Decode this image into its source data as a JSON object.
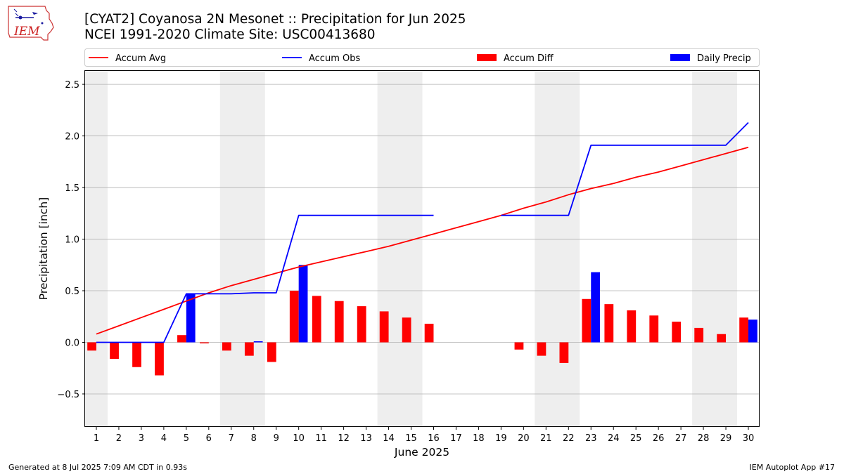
{
  "header": {
    "title_line1": "[CYAT2] Coyanosa 2N Mesonet :: Precipitation for Jun 2025",
    "title_line2": "NCEI 1991-2020 Climate Site: USC00413680",
    "logo_text": "IEM"
  },
  "footer": {
    "generated": "Generated at 8 Jul 2025 7:09 AM CDT in 0.93s",
    "app": "IEM Autoplot App #17"
  },
  "colors": {
    "accum_avg": "#ff0000",
    "accum_obs": "#0000ff",
    "accum_diff": "#ff0000",
    "daily_precip": "#0000ff",
    "weekend_shade": "#eeeeee",
    "grid": "#b0b0b0"
  },
  "chart_data": {
    "type": "bar",
    "xlabel": "June 2025",
    "ylabel": "Precipitation [inch]",
    "ylim": [
      -0.82,
      2.63
    ],
    "yticks": [
      -0.5,
      0.0,
      0.5,
      1.0,
      1.5,
      2.0,
      2.5
    ],
    "ytick_labels": [
      "−0.5",
      "0.0",
      "0.5",
      "1.0",
      "1.5",
      "2.0",
      "2.5"
    ],
    "xlim": [
      0.5,
      30.5
    ],
    "x": [
      1,
      2,
      3,
      4,
      5,
      6,
      7,
      8,
      9,
      10,
      11,
      12,
      13,
      14,
      15,
      16,
      17,
      18,
      19,
      20,
      21,
      22,
      23,
      24,
      25,
      26,
      27,
      28,
      29,
      30
    ],
    "xtick_labels": [
      "1",
      "2",
      "3",
      "4",
      "5",
      "6",
      "7",
      "8",
      "9",
      "10",
      "11",
      "12",
      "13",
      "14",
      "15",
      "16",
      "17",
      "18",
      "19",
      "20",
      "21",
      "22",
      "23",
      "24",
      "25",
      "26",
      "27",
      "28",
      "29",
      "30"
    ],
    "grid": "horizontal",
    "legend_position": "top",
    "shaded_day_spans": [
      [
        0.5,
        1.5
      ],
      [
        6.5,
        8.5
      ],
      [
        13.5,
        15.5
      ],
      [
        20.5,
        22.5
      ],
      [
        27.5,
        29.5
      ]
    ],
    "series": [
      {
        "name": "Accum Avg",
        "kind": "line",
        "values": [
          0.08,
          0.16,
          0.24,
          0.32,
          0.4,
          0.48,
          0.55,
          0.61,
          0.67,
          0.73,
          0.78,
          0.83,
          0.88,
          0.93,
          0.99,
          1.05,
          1.11,
          1.17,
          1.23,
          1.3,
          1.36,
          1.43,
          1.49,
          1.54,
          1.6,
          1.65,
          1.71,
          1.77,
          1.83,
          1.89
        ]
      },
      {
        "name": "Accum Obs",
        "kind": "line",
        "values": [
          0.0,
          0.0,
          0.0,
          0.0,
          0.47,
          0.47,
          0.47,
          0.48,
          0.48,
          1.23,
          1.23,
          1.23,
          1.23,
          1.23,
          1.23,
          1.23,
          null,
          null,
          1.23,
          1.23,
          1.23,
          1.23,
          1.91,
          1.91,
          1.91,
          1.91,
          1.91,
          1.91,
          1.91,
          2.13
        ]
      },
      {
        "name": "Accum Diff",
        "kind": "bar",
        "values": [
          -0.08,
          -0.16,
          -0.24,
          -0.32,
          0.07,
          -0.01,
          -0.08,
          -0.13,
          -0.19,
          0.5,
          0.45,
          0.4,
          0.35,
          0.3,
          0.24,
          0.18,
          null,
          null,
          0.0,
          -0.07,
          -0.13,
          -0.2,
          0.42,
          0.37,
          0.31,
          0.26,
          0.2,
          0.14,
          0.08,
          0.24
        ]
      },
      {
        "name": "Daily Precip",
        "kind": "bar",
        "values": [
          0,
          0,
          0,
          0,
          0.47,
          0,
          0,
          0.01,
          0,
          0.75,
          0,
          0,
          0,
          0,
          0,
          0,
          0,
          0,
          0,
          0,
          0,
          0,
          0.68,
          0,
          0,
          0,
          0,
          0,
          0,
          0.22
        ]
      }
    ]
  }
}
